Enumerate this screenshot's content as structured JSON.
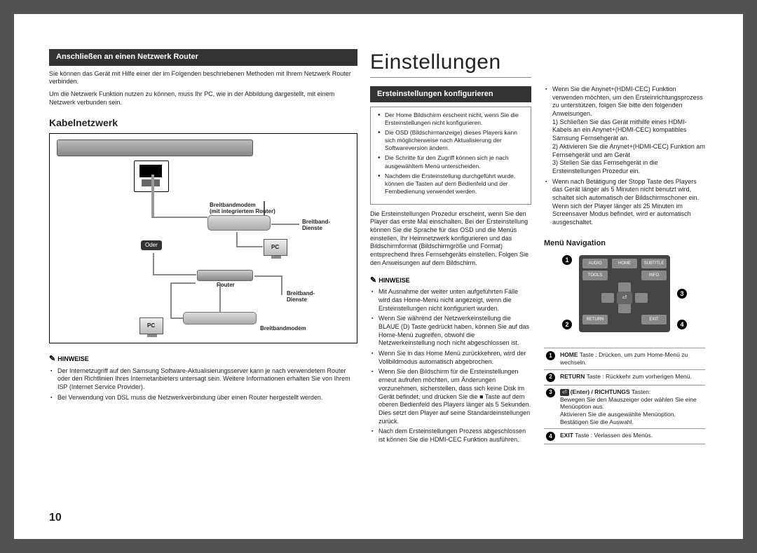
{
  "left": {
    "bar_title": "Anschließen an einen Netzwerk Router",
    "intro1": "Sie können das Gerät mit Hilfe einer der im Folgenden beschriebenen Methoden mit Ihrem Netzwerk Router verbinden.",
    "intro2": "Um die Netzwerk Funktion nutzen zu können, muss Ihr PC, wie in der Abbildung dargestellt, mit einem Netzwerk verbunden sein.",
    "sub_heading": "Kabelnetzwerk",
    "diagram": {
      "modem_router_label": "Breitbandmodem\n(mit integriertem Router)",
      "breitband_dienste": "Breitband-\nDienste",
      "oder": "Oder",
      "pc": "PC",
      "router": "Router",
      "breitbandmodem": "Breitbandmodem"
    },
    "hinweise_label": "HINWEISE",
    "hinweise": [
      "Der Internetzugriff auf den Samsung Software-Aktualisierungsserver kann je nach verwendetem Router oder den Richtlinien Ihres Internetanbieters untersagt sein. Weitere Informationen erhalten Sie von Ihrem ISP (Internet Service Provider).",
      "Bei Verwendung von DSL muss die Netzwerkverbindung über einen Router hergestellt werden."
    ]
  },
  "mid": {
    "main_title": "Einstellungen",
    "bar_title": "Ersteinstellungen konfigurieren",
    "tip_items": [
      "Der Home Bildschirm erscheint nicht, wenn Sie die Ersteinstellungen nicht konfigurieren.",
      "Die OSD (Bildschirmanzeige) dieses Players kann sich möglicherweise nach Aktualisierung der Softwareversion ändern.",
      "Die Schritte für den Zugriff können sich je nach ausgewähltem Menü unterscheiden.",
      "Nachdem die Ersteinstellung durchgeführt wurde, können die Tasten auf dem Bedienfeld und der Fernbedienung verwendet werden."
    ],
    "body": "Die Ersteinstellungen Prozedur erscheint, wenn Sie den Player das erste Mal einschalten. Bei der Ersteinstellung können Sie die Sprache für das OSD und die Menüs einstellen, Ihr Heimnetzwerk konfigurieren und das Bildschirmformat (Bildschirmgröße und Format) entsprechend Ihres Fernsehgeräts einstellen. Folgen Sie den Anweisungen auf dem Bildschirm.",
    "hinweise_label": "HINWEISE",
    "hinweise": [
      "Mit Ausnahme der weiter unten aufgeführten Fälle wird das Home-Menü nicht angezeigt, wenn die Ersteinstellungen nicht konfiguriert wurden.",
      "Wenn Sie während der Netzwerkeinstellung die BLAUE (D) Taste gedrückt haben, können Sie auf das Home-Menü zugreifen, obwohl die Netzwerkeinstellung noch nicht abgeschlossen ist.",
      "Wenn Sie in das Home Menü zurückkehren, wird der Vollbildmodus automatisch abgebrochen.",
      "Wenn Sie den Bildschirm für die Ersteinstellungen erneut aufrufen möchten, um Änderungen vorzunehmen, sicherstellen, dass sich keine Disk im Gerät befindet, und drücken Sie die ■ Taste auf dem oberen Bedienfeld des Players länger als 5 Sekunden. Dies setzt den Player auf seine Standardeinstellungen zurück.",
      "Nach dem Ersteinstellungen Prozess abgeschlossen ist können Sie die HDMI-CEC Funktion ausführen."
    ]
  },
  "right": {
    "top_items": [
      "Wenn Sie die Anynet+(HDMI-CEC) Funktion verwenden möchten, um den Ersteinrichtungsprozess zu unterstützen, folgen Sie bitte den folgenden Anweisungen.",
      "1) Schließen Sie das Gerät mithilfe eines HDMI-Kabels an ein Anynet+(HDMI-CEC) kompatibles Samsung Fernsehgerät an.",
      "2) Aktivieren Sie die Anynet+(HDMI-CEC) Funktion am Fernsehgerät und am Gerät",
      "3) Stellen Sie das Fernsehgerät in die Ersteinstellungen Prozedur ein.",
      "Wenn nach Betätigung der Stopp Taste des Players das Gerät länger als 5 Minuten nicht benutzt wird, schaltet sich automatisch der Bildschirmschoner ein. Wenn sich der Player länger als 25 Minuten im Screensaver Modus befindet, wird er automatisch ausgeschaltet."
    ],
    "menu_nav_title": "Menü Navigation",
    "remote_labels": {
      "audio": "AUDIO",
      "home": "HOME",
      "subtitle": "SUBTITLE",
      "tools": "TOOLS",
      "info": "INFO",
      "return": "RETURN",
      "exit": "EXIT"
    },
    "nav_table": [
      {
        "n": "1",
        "html": "<b>HOME</b> Taste : Drücken, um zum Home-Menü zu wechseln."
      },
      {
        "n": "2",
        "html": "<b>RETURN</b> Taste : Rückkehr zum vorherigen Menü."
      },
      {
        "n": "3",
        "html": "<span class='keybox'>⏎</span><b>(Enter) / RICHTUNGS</b> Tasten:<br>Bewegen Sie den Mauszeiger oder wählen Sie eine Menüoption aus.<br>Aktivieren Sie die ausgewählte Menüoption. Bestätigen Sie die Auswahl."
      },
      {
        "n": "4",
        "html": "<b>EXIT</b> Taste : Verlassen des Menüs."
      }
    ]
  },
  "page_number": "10"
}
